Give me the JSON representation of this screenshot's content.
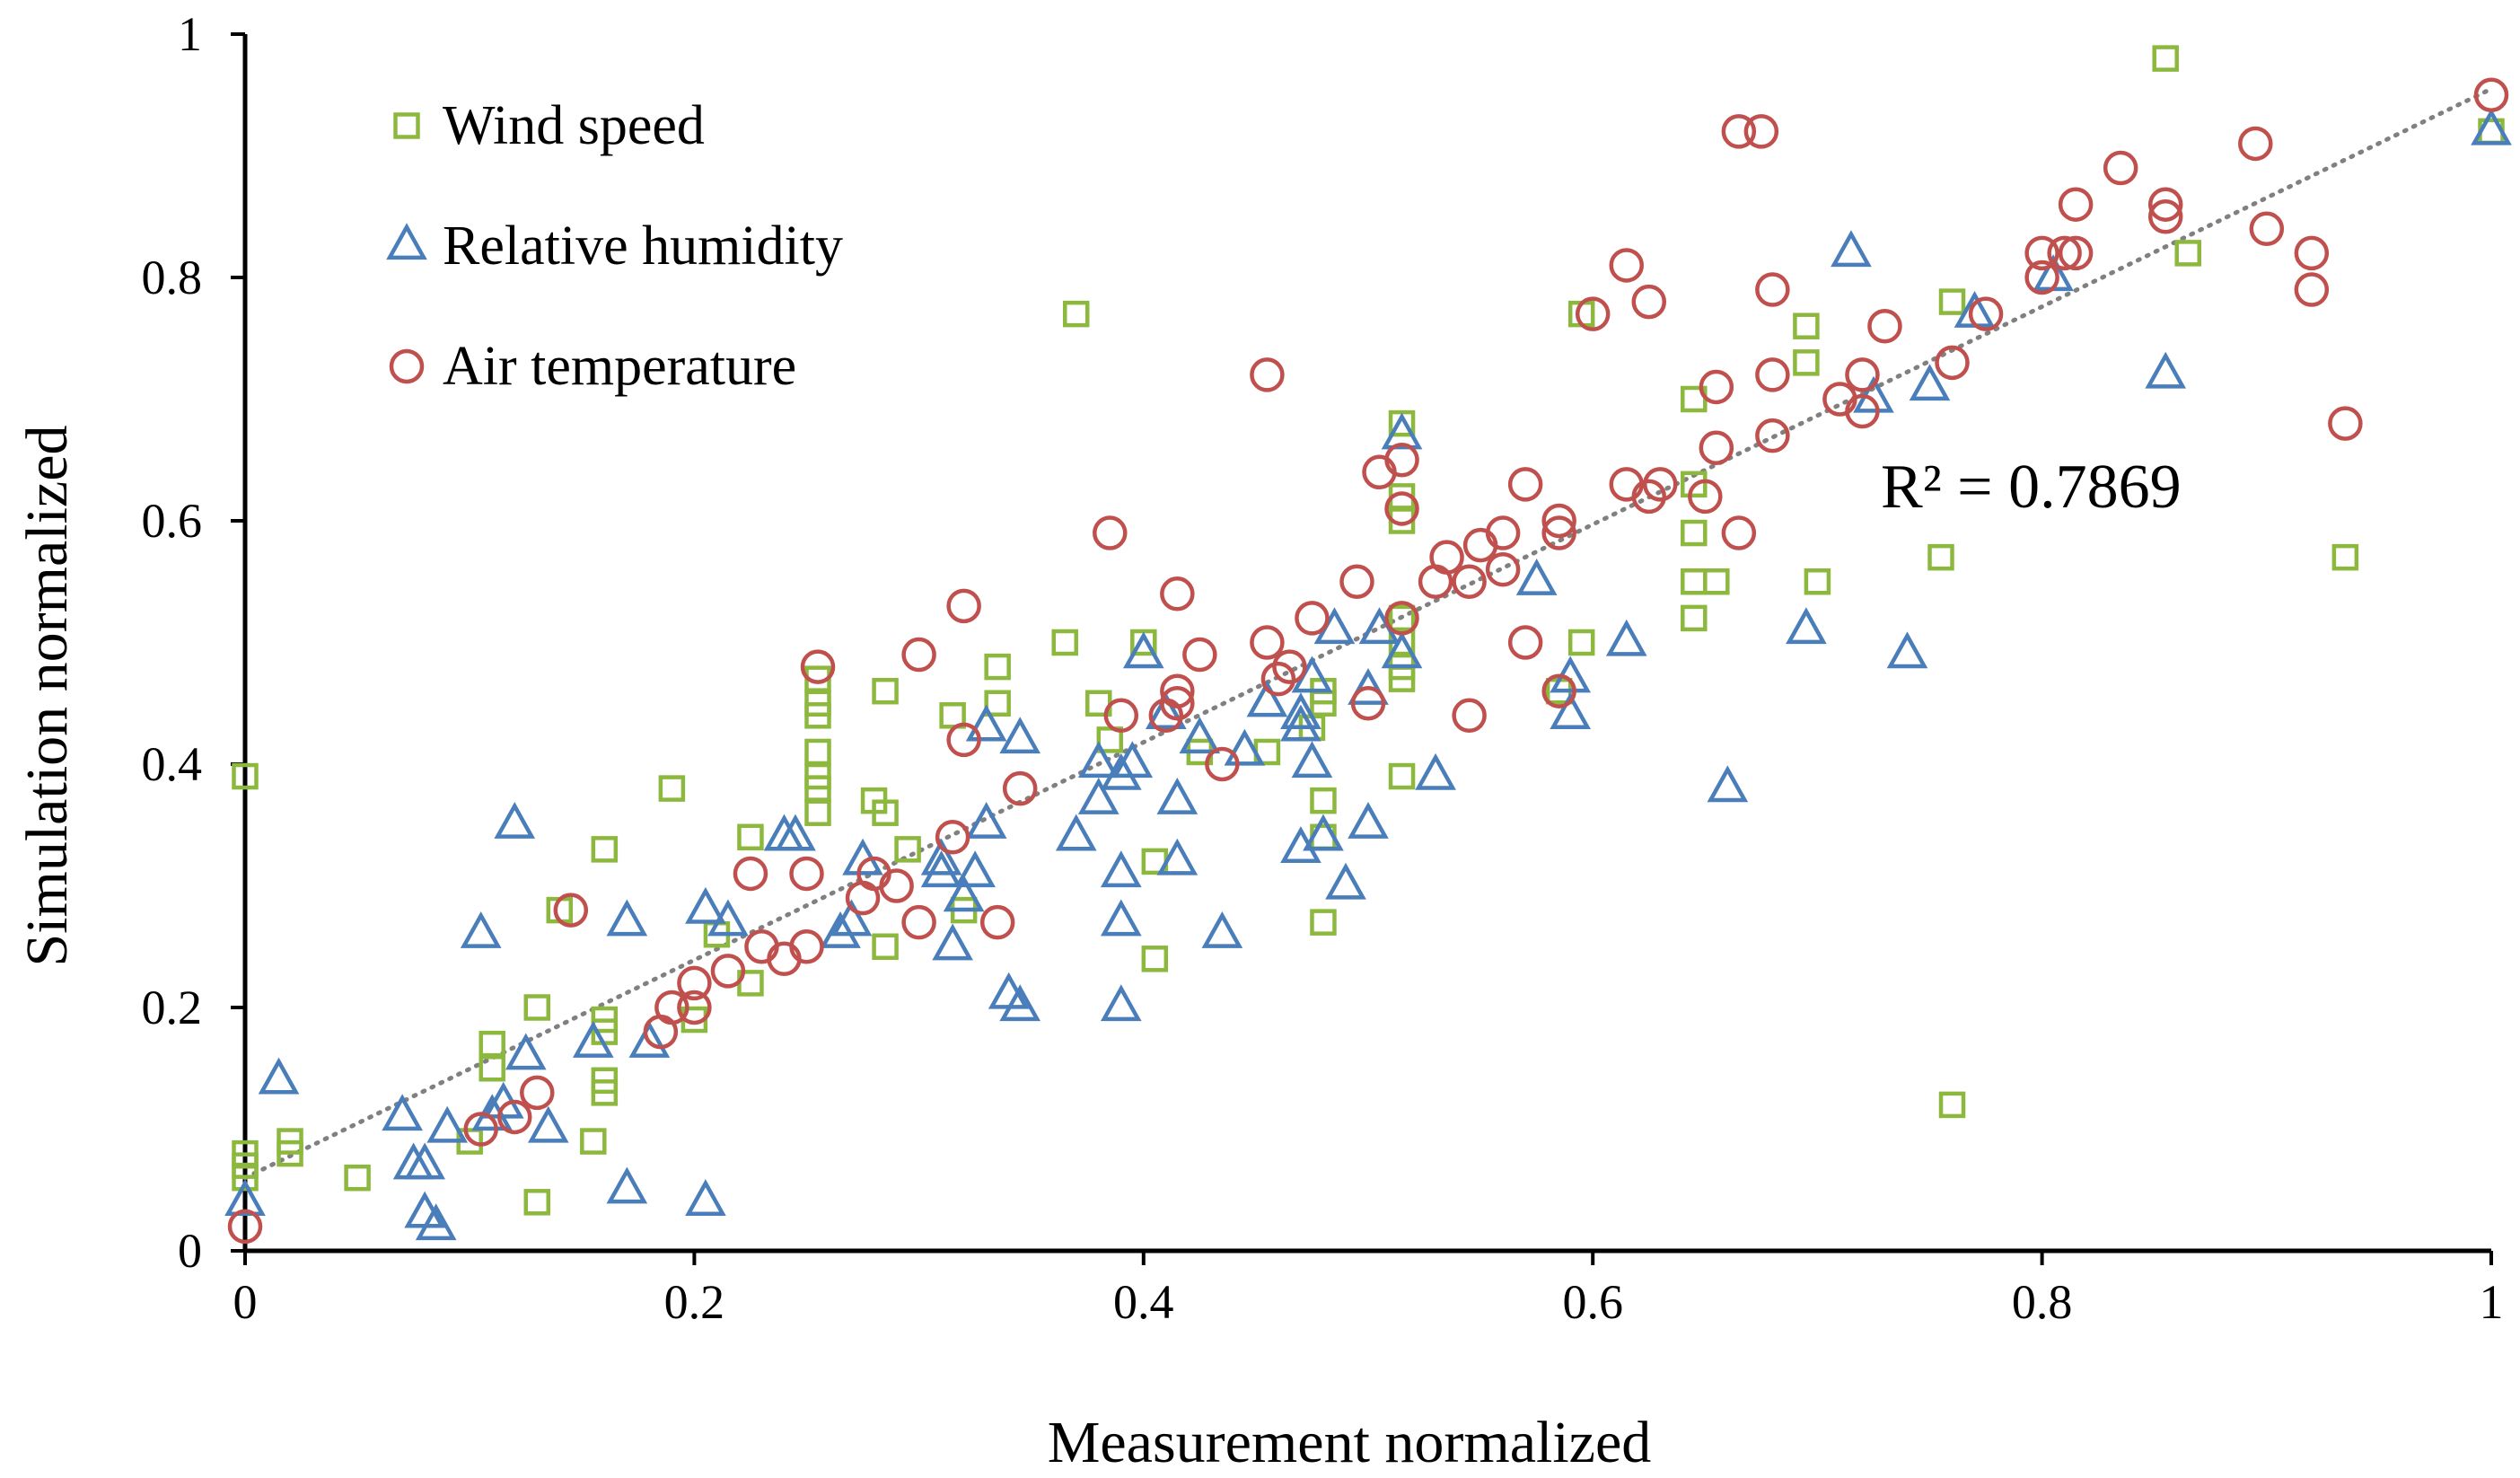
{
  "chart_data": {
    "type": "scatter",
    "xlabel": "Measurement normalized",
    "ylabel": "Simulation  normalized",
    "xlim": [
      0,
      1
    ],
    "ylim": [
      0,
      1
    ],
    "xticks": [
      "0",
      "0.2",
      "0.4",
      "0.6",
      "0.8",
      "1"
    ],
    "yticks": [
      "0",
      "0.2",
      "0.4",
      "0.6",
      "0.8",
      "1"
    ],
    "grid": false,
    "legend_position": "top-left",
    "annotation": "R² = 0.7869",
    "trendline": {
      "style": "dotted",
      "color": "#808080",
      "x": [
        0,
        1
      ],
      "y": [
        0.06,
        0.955
      ]
    },
    "series": [
      {
        "name": "Wind speed",
        "marker": "square",
        "color": "#8db83e",
        "points": [
          [
            0,
            0.39
          ],
          [
            0,
            0.06
          ],
          [
            0,
            0.07
          ],
          [
            0,
            0.08
          ],
          [
            0.02,
            0.08
          ],
          [
            0.02,
            0.09
          ],
          [
            0.05,
            0.06
          ],
          [
            0.1,
            0.09
          ],
          [
            0.11,
            0.15
          ],
          [
            0.11,
            0.17
          ],
          [
            0.13,
            0.04
          ],
          [
            0.13,
            0.2
          ],
          [
            0.14,
            0.28
          ],
          [
            0.155,
            0.09
          ],
          [
            0.16,
            0.33
          ],
          [
            0.16,
            0.19
          ],
          [
            0.16,
            0.18
          ],
          [
            0.16,
            0.13
          ],
          [
            0.16,
            0.14
          ],
          [
            0.19,
            0.38
          ],
          [
            0.2,
            0.19
          ],
          [
            0.21,
            0.26
          ],
          [
            0.225,
            0.22
          ],
          [
            0.225,
            0.34
          ],
          [
            0.255,
            0.36
          ],
          [
            0.255,
            0.38
          ],
          [
            0.255,
            0.39
          ],
          [
            0.255,
            0.41
          ],
          [
            0.255,
            0.44
          ],
          [
            0.255,
            0.45
          ],
          [
            0.255,
            0.47
          ],
          [
            0.28,
            0.37
          ],
          [
            0.285,
            0.36
          ],
          [
            0.285,
            0.46
          ],
          [
            0.285,
            0.25
          ],
          [
            0.295,
            0.33
          ],
          [
            0.315,
            0.44
          ],
          [
            0.32,
            0.28
          ],
          [
            0.335,
            0.45
          ],
          [
            0.335,
            0.48
          ],
          [
            0.365,
            0.5
          ],
          [
            0.37,
            0.77
          ],
          [
            0.38,
            0.45
          ],
          [
            0.385,
            0.42
          ],
          [
            0.4,
            0.5
          ],
          [
            0.405,
            0.32
          ],
          [
            0.405,
            0.24
          ],
          [
            0.425,
            0.41
          ],
          [
            0.455,
            0.41
          ],
          [
            0.475,
            0.43
          ],
          [
            0.48,
            0.45
          ],
          [
            0.48,
            0.46
          ],
          [
            0.48,
            0.37
          ],
          [
            0.48,
            0.34
          ],
          [
            0.48,
            0.27
          ],
          [
            0.515,
            0.39
          ],
          [
            0.515,
            0.47
          ],
          [
            0.515,
            0.48
          ],
          [
            0.515,
            0.5
          ],
          [
            0.515,
            0.52
          ],
          [
            0.515,
            0.6
          ],
          [
            0.515,
            0.62
          ],
          [
            0.515,
            0.68
          ],
          [
            0.585,
            0.46
          ],
          [
            0.595,
            0.5
          ],
          [
            0.595,
            0.77
          ],
          [
            0.645,
            0.7
          ],
          [
            0.645,
            0.52
          ],
          [
            0.645,
            0.55
          ],
          [
            0.645,
            0.59
          ],
          [
            0.645,
            0.63
          ],
          [
            0.655,
            0.55
          ],
          [
            0.695,
            0.76
          ],
          [
            0.695,
            0.73
          ],
          [
            0.7,
            0.55
          ],
          [
            0.755,
            0.57
          ],
          [
            0.76,
            0.78
          ],
          [
            0.76,
            0.12
          ],
          [
            0.855,
            0.98
          ],
          [
            0.865,
            0.82
          ],
          [
            0.935,
            0.57
          ],
          [
            1.0,
            0.92
          ]
        ]
      },
      {
        "name": "Relative humidity",
        "marker": "triangle",
        "color": "#4a7ebb",
        "points": [
          [
            0,
            0.04
          ],
          [
            0.015,
            0.14
          ],
          [
            0.07,
            0.11
          ],
          [
            0.075,
            0.07
          ],
          [
            0.08,
            0.03
          ],
          [
            0.08,
            0.07
          ],
          [
            0.085,
            0.02
          ],
          [
            0.09,
            0.1
          ],
          [
            0.105,
            0.26
          ],
          [
            0.11,
            0.11
          ],
          [
            0.115,
            0.12
          ],
          [
            0.12,
            0.35
          ],
          [
            0.125,
            0.16
          ],
          [
            0.135,
            0.1
          ],
          [
            0.155,
            0.17
          ],
          [
            0.17,
            0.05
          ],
          [
            0.17,
            0.27
          ],
          [
            0.18,
            0.17
          ],
          [
            0.205,
            0.28
          ],
          [
            0.205,
            0.04
          ],
          [
            0.215,
            0.27
          ],
          [
            0.24,
            0.34
          ],
          [
            0.245,
            0.34
          ],
          [
            0.265,
            0.26
          ],
          [
            0.27,
            0.27
          ],
          [
            0.275,
            0.32
          ],
          [
            0.31,
            0.31
          ],
          [
            0.31,
            0.32
          ],
          [
            0.315,
            0.25
          ],
          [
            0.32,
            0.29
          ],
          [
            0.325,
            0.31
          ],
          [
            0.33,
            0.35
          ],
          [
            0.33,
            0.43
          ],
          [
            0.34,
            0.21
          ],
          [
            0.345,
            0.2
          ],
          [
            0.345,
            0.42
          ],
          [
            0.37,
            0.34
          ],
          [
            0.38,
            0.37
          ],
          [
            0.38,
            0.4
          ],
          [
            0.39,
            0.39
          ],
          [
            0.39,
            0.2
          ],
          [
            0.39,
            0.31
          ],
          [
            0.39,
            0.27
          ],
          [
            0.395,
            0.4
          ],
          [
            0.4,
            0.49
          ],
          [
            0.41,
            0.44
          ],
          [
            0.415,
            0.32
          ],
          [
            0.415,
            0.37
          ],
          [
            0.425,
            0.42
          ],
          [
            0.435,
            0.26
          ],
          [
            0.445,
            0.41
          ],
          [
            0.455,
            0.45
          ],
          [
            0.47,
            0.33
          ],
          [
            0.47,
            0.43
          ],
          [
            0.47,
            0.44
          ],
          [
            0.475,
            0.4
          ],
          [
            0.475,
            0.47
          ],
          [
            0.48,
            0.34
          ],
          [
            0.485,
            0.51
          ],
          [
            0.49,
            0.3
          ],
          [
            0.5,
            0.35
          ],
          [
            0.5,
            0.46
          ],
          [
            0.505,
            0.51
          ],
          [
            0.515,
            0.49
          ],
          [
            0.515,
            0.67
          ],
          [
            0.53,
            0.39
          ],
          [
            0.575,
            0.55
          ],
          [
            0.59,
            0.47
          ],
          [
            0.59,
            0.44
          ],
          [
            0.615,
            0.5
          ],
          [
            0.66,
            0.38
          ],
          [
            0.695,
            0.51
          ],
          [
            0.715,
            0.82
          ],
          [
            0.725,
            0.7
          ],
          [
            0.74,
            0.49
          ],
          [
            0.75,
            0.71
          ],
          [
            0.77,
            0.77
          ],
          [
            0.805,
            0.8
          ],
          [
            0.855,
            0.72
          ],
          [
            1.0,
            0.92
          ]
        ]
      },
      {
        "name": "Air temperature",
        "marker": "circle",
        "color": "#c0504d",
        "points": [
          [
            0,
            0.02
          ],
          [
            0.105,
            0.1
          ],
          [
            0.12,
            0.11
          ],
          [
            0.13,
            0.13
          ],
          [
            0.145,
            0.28
          ],
          [
            0.185,
            0.18
          ],
          [
            0.19,
            0.2
          ],
          [
            0.2,
            0.2
          ],
          [
            0.2,
            0.22
          ],
          [
            0.215,
            0.23
          ],
          [
            0.225,
            0.31
          ],
          [
            0.23,
            0.25
          ],
          [
            0.24,
            0.24
          ],
          [
            0.25,
            0.25
          ],
          [
            0.25,
            0.31
          ],
          [
            0.255,
            0.48
          ],
          [
            0.275,
            0.29
          ],
          [
            0.28,
            0.31
          ],
          [
            0.29,
            0.3
          ],
          [
            0.3,
            0.27
          ],
          [
            0.3,
            0.49
          ],
          [
            0.315,
            0.34
          ],
          [
            0.32,
            0.42
          ],
          [
            0.32,
            0.53
          ],
          [
            0.335,
            0.27
          ],
          [
            0.345,
            0.38
          ],
          [
            0.385,
            0.59
          ],
          [
            0.39,
            0.44
          ],
          [
            0.41,
            0.44
          ],
          [
            0.415,
            0.45
          ],
          [
            0.415,
            0.46
          ],
          [
            0.415,
            0.54
          ],
          [
            0.425,
            0.49
          ],
          [
            0.435,
            0.4
          ],
          [
            0.455,
            0.5
          ],
          [
            0.455,
            0.72
          ],
          [
            0.46,
            0.47
          ],
          [
            0.465,
            0.48
          ],
          [
            0.475,
            0.52
          ],
          [
            0.495,
            0.55
          ],
          [
            0.5,
            0.45
          ],
          [
            0.505,
            0.64
          ],
          [
            0.515,
            0.52
          ],
          [
            0.515,
            0.61
          ],
          [
            0.515,
            0.65
          ],
          [
            0.53,
            0.55
          ],
          [
            0.535,
            0.57
          ],
          [
            0.545,
            0.55
          ],
          [
            0.545,
            0.44
          ],
          [
            0.55,
            0.58
          ],
          [
            0.56,
            0.56
          ],
          [
            0.56,
            0.59
          ],
          [
            0.57,
            0.5
          ],
          [
            0.57,
            0.63
          ],
          [
            0.585,
            0.46
          ],
          [
            0.585,
            0.59
          ],
          [
            0.585,
            0.6
          ],
          [
            0.6,
            0.77
          ],
          [
            0.615,
            0.63
          ],
          [
            0.615,
            0.81
          ],
          [
            0.625,
            0.78
          ],
          [
            0.625,
            0.62
          ],
          [
            0.63,
            0.63
          ],
          [
            0.65,
            0.62
          ],
          [
            0.655,
            0.66
          ],
          [
            0.655,
            0.71
          ],
          [
            0.665,
            0.92
          ],
          [
            0.665,
            0.59
          ],
          [
            0.675,
            0.92
          ],
          [
            0.68,
            0.67
          ],
          [
            0.68,
            0.72
          ],
          [
            0.68,
            0.79
          ],
          [
            0.71,
            0.7
          ],
          [
            0.72,
            0.69
          ],
          [
            0.72,
            0.72
          ],
          [
            0.73,
            0.76
          ],
          [
            0.76,
            0.73
          ],
          [
            0.775,
            0.77
          ],
          [
            0.8,
            0.8
          ],
          [
            0.8,
            0.82
          ],
          [
            0.81,
            0.82
          ],
          [
            0.815,
            0.82
          ],
          [
            0.815,
            0.86
          ],
          [
            0.835,
            0.89
          ],
          [
            0.855,
            0.85
          ],
          [
            0.855,
            0.86
          ],
          [
            0.895,
            0.91
          ],
          [
            0.9,
            0.84
          ],
          [
            0.92,
            0.79
          ],
          [
            0.92,
            0.82
          ],
          [
            0.935,
            0.68
          ],
          [
            1.0,
            0.95
          ]
        ]
      }
    ]
  }
}
